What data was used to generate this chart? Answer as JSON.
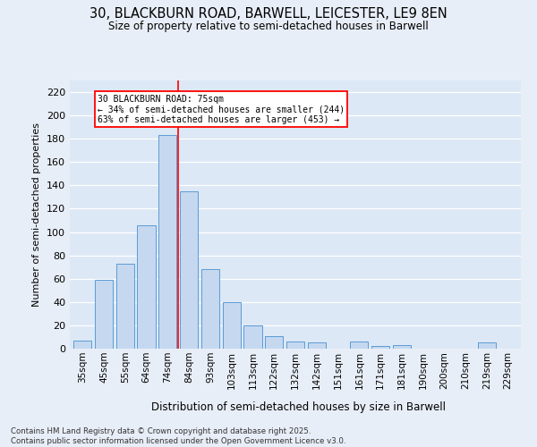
{
  "title_line1": "30, BLACKBURN ROAD, BARWELL, LEICESTER, LE9 8EN",
  "title_line2": "Size of property relative to semi-detached houses in Barwell",
  "xlabel": "Distribution of semi-detached houses by size in Barwell",
  "ylabel": "Number of semi-detached properties",
  "categories": [
    "35sqm",
    "45sqm",
    "55sqm",
    "64sqm",
    "74sqm",
    "84sqm",
    "93sqm",
    "103sqm",
    "113sqm",
    "122sqm",
    "132sqm",
    "142sqm",
    "151sqm",
    "161sqm",
    "171sqm",
    "181sqm",
    "190sqm",
    "200sqm",
    "210sqm",
    "219sqm",
    "229sqm"
  ],
  "values": [
    7,
    59,
    73,
    106,
    183,
    135,
    68,
    40,
    20,
    11,
    6,
    5,
    0,
    6,
    2,
    3,
    0,
    0,
    0,
    5,
    0
  ],
  "bar_color": "#c5d8f0",
  "bar_edge_color": "#5b9bd5",
  "property_line_x": 4.5,
  "annotation_text_line1": "30 BLACKBURN ROAD: 75sqm",
  "annotation_text_line2": "← 34% of semi-detached houses are smaller (244)",
  "annotation_text_line3": "63% of semi-detached houses are larger (453) →",
  "ylim": [
    0,
    230
  ],
  "yticks": [
    0,
    20,
    40,
    60,
    80,
    100,
    120,
    140,
    160,
    180,
    200,
    220
  ],
  "background_color": "#e8eef7",
  "plot_bg_color": "#dce8f5",
  "grid_color": "#ffffff",
  "footer_line1": "Contains HM Land Registry data © Crown copyright and database right 2025.",
  "footer_line2": "Contains public sector information licensed under the Open Government Licence v3.0."
}
